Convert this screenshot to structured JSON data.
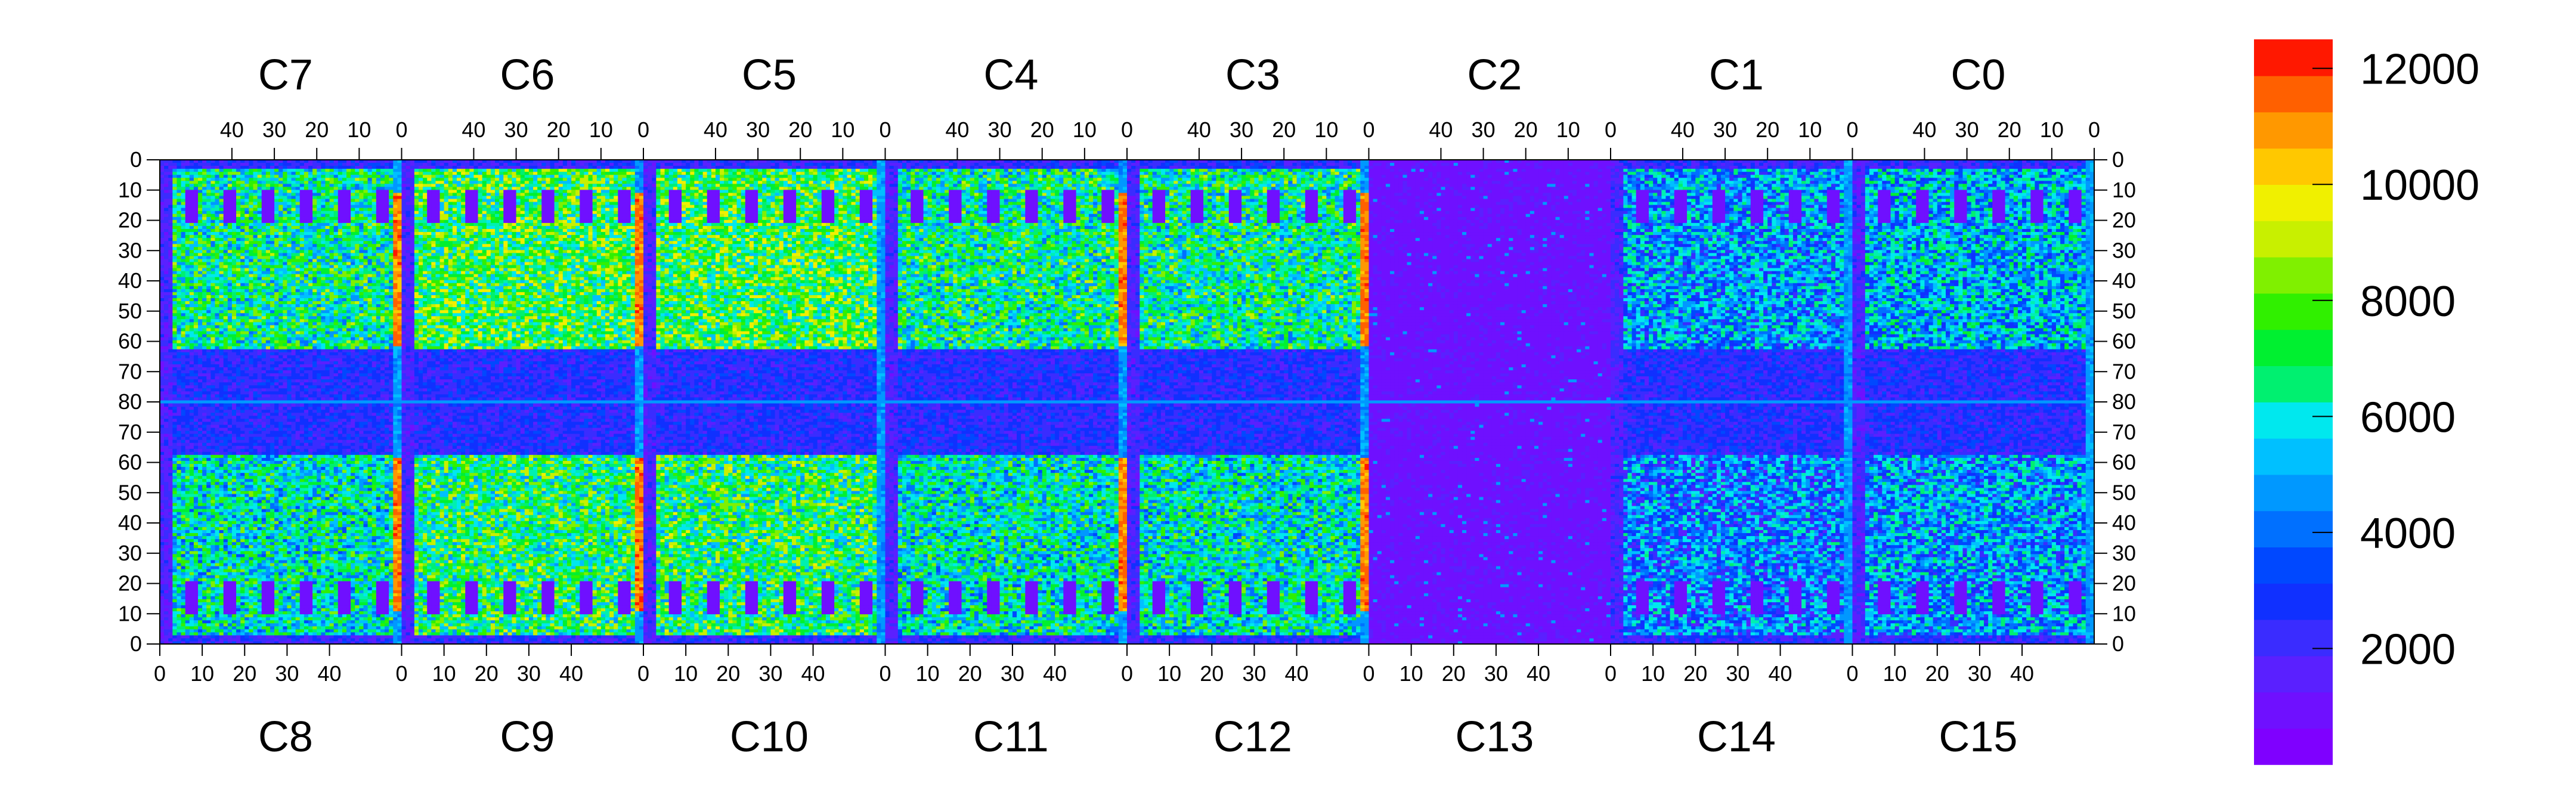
{
  "chart_data": {
    "type": "heatmap",
    "top_chips": [
      "C7",
      "C6",
      "C5",
      "C4",
      "C3",
      "C2",
      "C1",
      "C0"
    ],
    "bottom_chips": [
      "C8",
      "C9",
      "C10",
      "C11",
      "C12",
      "C13",
      "C14",
      "C15"
    ],
    "top_x_ticks": [
      "40",
      "30",
      "20",
      "10",
      "0"
    ],
    "bottom_x_ticks": [
      "0",
      "10",
      "20",
      "30",
      "40"
    ],
    "chip_width_columns": 57,
    "y_ticks": [
      "0",
      "10",
      "20",
      "30",
      "40",
      "50",
      "60",
      "70",
      "80",
      "70",
      "60",
      "50",
      "40",
      "30",
      "20",
      "10",
      "0"
    ],
    "rows_per_half": 81,
    "z_range": [
      0,
      12500
    ],
    "colorbar_ticks": [
      "2000",
      "4000",
      "6000",
      "8000",
      "10000",
      "12000"
    ],
    "colorbar_tick_values": [
      2000,
      4000,
      6000,
      8000,
      10000,
      12000
    ],
    "colorbar_levels": 20,
    "palette": [
      "#7f00ff",
      "#6f10ff",
      "#5a20ff",
      "#3a2cff",
      "#1030ff",
      "#0048ff",
      "#0070ff",
      "#0098ff",
      "#00c0ff",
      "#00e8ee",
      "#00f0b0",
      "#00f070",
      "#00f030",
      "#30f000",
      "#80f000",
      "#c8f000",
      "#f0f000",
      "#ffc800",
      "#ff9800",
      "#ff6000",
      "#ff1800"
    ],
    "regions": [
      {
        "chip": "C7",
        "level": "medium-high",
        "value_estimate": 6500
      },
      {
        "chip": "C6",
        "level": "high",
        "value_estimate": 7500
      },
      {
        "chip": "C5",
        "level": "high",
        "value_estimate": 7500
      },
      {
        "chip": "C4",
        "level": "medium-high",
        "value_estimate": 6500
      },
      {
        "chip": "C3",
        "level": "medium-high",
        "value_estimate": 6500
      },
      {
        "chip": "C2",
        "level": "low",
        "value_estimate": 1000
      },
      {
        "chip": "C1",
        "level": "medium",
        "value_estimate": 4500
      },
      {
        "chip": "C0",
        "level": "medium",
        "value_estimate": 5000
      },
      {
        "chip": "C8",
        "level": "medium-high",
        "value_estimate": 6000
      },
      {
        "chip": "C9",
        "level": "high",
        "value_estimate": 7000
      },
      {
        "chip": "C10",
        "level": "high",
        "value_estimate": 7000
      },
      {
        "chip": "C11",
        "level": "medium-high",
        "value_estimate": 6000
      },
      {
        "chip": "C12",
        "level": "medium-high",
        "value_estimate": 6000
      },
      {
        "chip": "C13",
        "level": "low",
        "value_estimate": 1000
      },
      {
        "chip": "C14",
        "level": "medium",
        "value_estimate": 4000
      },
      {
        "chip": "C15",
        "level": "medium",
        "value_estimate": 4500
      }
    ],
    "hot_strip_value_estimate": 12000,
    "grid": false,
    "title": "",
    "xlabel": "",
    "ylabel": ""
  }
}
